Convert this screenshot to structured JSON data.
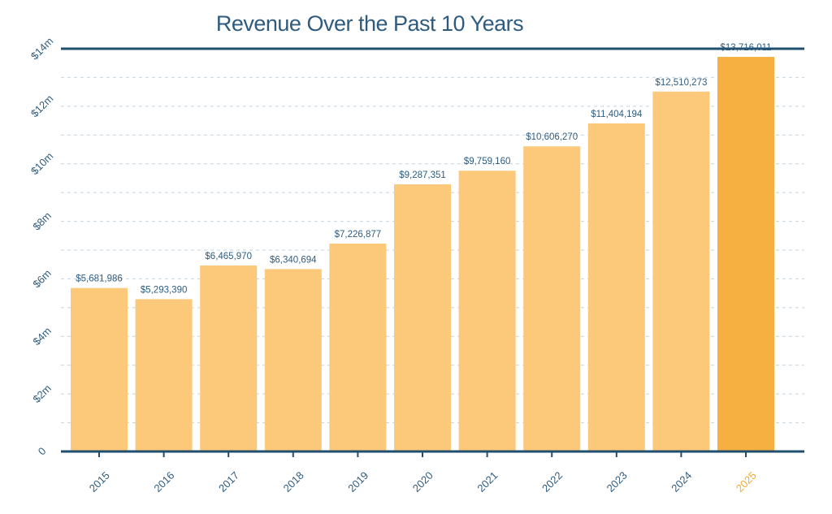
{
  "chart_data": {
    "type": "bar",
    "title": "Revenue Over the Past 10 Years",
    "categories": [
      "2015",
      "2016",
      "2017",
      "2018",
      "2019",
      "2020",
      "2021",
      "2022",
      "2023",
      "2024",
      "2025"
    ],
    "values": [
      5681986,
      5293390,
      6465970,
      6340694,
      7226877,
      9287351,
      9759160,
      10606270,
      11404194,
      12510273,
      13716011
    ],
    "data_labels": [
      "$5,681,986",
      "$5,293,390",
      "$6,465,970",
      "$6,340,694",
      "$7,226,877",
      "$9,287,351",
      "$9,759,160",
      "$10,606,270",
      "$11,404,194",
      "$12,510,273",
      "$13,716,011"
    ],
    "y_ticks": [
      0,
      2000000,
      4000000,
      6000000,
      8000000,
      10000000,
      12000000,
      14000000
    ],
    "y_tick_labels": [
      "0",
      "$2m",
      "$4m",
      "$6m",
      "$8m",
      "$10m",
      "$12m",
      "$14m"
    ],
    "ylim": [
      0,
      14000000
    ],
    "grid": "horizontal dashed, every $1m",
    "xlabel": "",
    "ylabel": "",
    "colors": {
      "bar": "#fcc97b",
      "highlight_bar": "#f6b042",
      "highlight_label": "#f4a92f",
      "axis": "#1f4e6f",
      "text": "#2f5c7e",
      "grid": "#c5d3dd"
    },
    "highlight_index": 10
  }
}
